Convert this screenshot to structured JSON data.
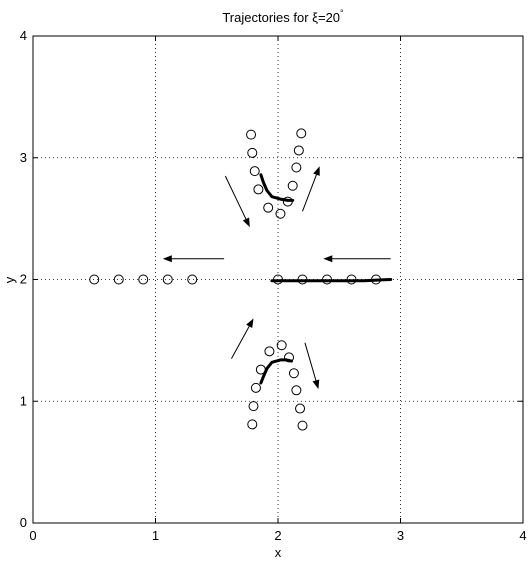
{
  "chart_data": {
    "type": "scatter",
    "title_main": "Trajectories for ξ=20",
    "title_sup": "°",
    "xlabel": "x",
    "ylabel": "y",
    "xlim": [
      0,
      4
    ],
    "ylim": [
      0,
      4
    ],
    "grid": true,
    "xticks": [
      0,
      1,
      2,
      3,
      4
    ],
    "yticks": [
      0,
      1,
      2,
      3,
      4
    ],
    "xtick_labels": [
      "0",
      "1",
      "2",
      "3",
      "4"
    ],
    "ytick_labels": [
      "0",
      "1",
      "2",
      "3",
      "4"
    ],
    "circles": [
      [
        0.5,
        2.0
      ],
      [
        0.7,
        2.0
      ],
      [
        0.9,
        2.0
      ],
      [
        1.1,
        2.0
      ],
      [
        1.3,
        2.0
      ],
      [
        2.0,
        2.0
      ],
      [
        2.2,
        2.0
      ],
      [
        2.4,
        2.0
      ],
      [
        2.6,
        2.0
      ],
      [
        2.8,
        2.0
      ],
      [
        1.78,
        3.19
      ],
      [
        1.79,
        3.04
      ],
      [
        1.81,
        2.89
      ],
      [
        1.84,
        2.74
      ],
      [
        1.92,
        2.59
      ],
      [
        2.02,
        2.54
      ],
      [
        2.08,
        2.64
      ],
      [
        2.12,
        2.77
      ],
      [
        2.15,
        2.92
      ],
      [
        2.17,
        3.06
      ],
      [
        2.19,
        3.2
      ],
      [
        1.79,
        0.81
      ],
      [
        1.8,
        0.96
      ],
      [
        1.82,
        1.11
      ],
      [
        1.86,
        1.26
      ],
      [
        1.93,
        1.41
      ],
      [
        2.03,
        1.46
      ],
      [
        2.09,
        1.36
      ],
      [
        2.13,
        1.23
      ],
      [
        2.15,
        1.09
      ],
      [
        2.18,
        0.94
      ],
      [
        2.2,
        0.8
      ]
    ],
    "thick_paths": [
      [
        [
          1.86,
          2.86
        ],
        [
          1.88,
          2.8
        ],
        [
          1.91,
          2.73
        ],
        [
          1.95,
          2.68
        ],
        [
          2.02,
          2.66
        ],
        [
          2.08,
          2.65
        ],
        [
          2.12,
          2.65
        ]
      ],
      [
        [
          1.86,
          1.15
        ],
        [
          1.88,
          1.2
        ],
        [
          1.91,
          1.27
        ],
        [
          1.95,
          1.32
        ],
        [
          2.02,
          1.34
        ],
        [
          2.07,
          1.34
        ],
        [
          2.11,
          1.33
        ]
      ],
      [
        [
          1.95,
          1.99
        ],
        [
          2.3,
          1.99
        ],
        [
          2.7,
          1.99
        ],
        [
          2.92,
          2.0
        ]
      ]
    ],
    "arrows": [
      [
        [
          1.56,
          2.17
        ],
        [
          1.06,
          2.17
        ]
      ],
      [
        [
          2.92,
          2.17
        ],
        [
          2.37,
          2.17
        ]
      ],
      [
        [
          1.57,
          2.85
        ],
        [
          1.77,
          2.43
        ]
      ],
      [
        [
          2.2,
          2.56
        ],
        [
          2.34,
          2.93
        ]
      ],
      [
        [
          1.62,
          1.35
        ],
        [
          1.8,
          1.68
        ]
      ],
      [
        [
          2.22,
          1.48
        ],
        [
          2.33,
          1.1
        ]
      ]
    ]
  }
}
